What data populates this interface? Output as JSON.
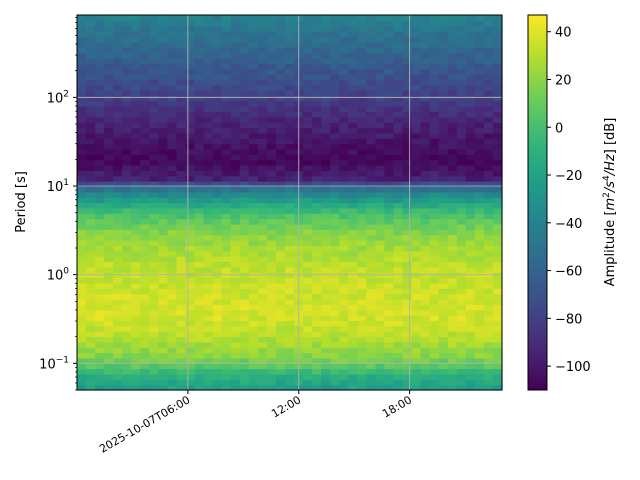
{
  "chart_data": {
    "type": "heatmap",
    "title": "",
    "xlabel": "",
    "ylabel": "Period [s]",
    "x_axis": {
      "type": "time",
      "start": "2025-10-07T00:00",
      "end": "2025-10-07T23:00",
      "ticks": [
        {
          "time": "2025-10-07T06:00",
          "label": "2025-10-07T06:00"
        },
        {
          "time": "2025-10-07T12:00",
          "label": "12:00"
        },
        {
          "time": "2025-10-07T18:00",
          "label": "18:00"
        }
      ]
    },
    "y_axis": {
      "scale": "log",
      "range": [
        0.05,
        850
      ],
      "major_ticks": [
        {
          "value": 0.1,
          "base": "10",
          "exp": "−1"
        },
        {
          "value": 1,
          "base": "10",
          "exp": "0"
        },
        {
          "value": 10,
          "base": "10",
          "exp": "1"
        },
        {
          "value": 100,
          "base": "10",
          "exp": "2"
        }
      ]
    },
    "grid": true,
    "colormap": "viridis",
    "colorbar": {
      "label_prefix": "Amplitude [",
      "label_unit_parts": [
        "m",
        "2",
        "/s",
        "4",
        "/Hz",
        "] [dB]"
      ],
      "range": [
        -110,
        47
      ],
      "ticks": [
        {
          "value": 40,
          "label": "40"
        },
        {
          "value": 20,
          "label": "20"
        },
        {
          "value": 0,
          "label": "0"
        },
        {
          "value": -20,
          "label": "−20"
        },
        {
          "value": -40,
          "label": "−40"
        },
        {
          "value": -60,
          "label": "−60"
        },
        {
          "value": -80,
          "label": "−80"
        },
        {
          "value": -100,
          "label": "−100"
        }
      ]
    },
    "time_columns_hours": [
      0,
      0.5,
      1,
      1.5,
      2,
      2.5,
      3,
      3.5,
      4,
      4.5,
      5,
      5.5,
      6,
      6.5,
      7,
      7.5,
      8,
      8.5,
      9,
      9.5,
      10,
      10.5,
      11,
      11.5,
      12,
      12.5,
      13,
      13.5,
      14,
      14.5,
      15,
      15.5,
      16,
      16.5,
      17,
      17.5,
      18,
      18.5,
      19,
      19.5,
      20,
      20.5,
      21,
      21.5,
      22,
      22.5,
      23
    ],
    "period_profile_db": [
      {
        "period": 0.05,
        "db": -25
      },
      {
        "period": 0.06,
        "db": -18
      },
      {
        "period": 0.075,
        "db": -10
      },
      {
        "period": 0.09,
        "db": 5
      },
      {
        "period": 0.12,
        "db": 18
      },
      {
        "period": 0.2,
        "db": 30
      },
      {
        "period": 0.35,
        "db": 38
      },
      {
        "period": 0.5,
        "db": 36
      },
      {
        "period": 0.8,
        "db": 34
      },
      {
        "period": 1.2,
        "db": 32
      },
      {
        "period": 2,
        "db": 26
      },
      {
        "period": 3,
        "db": 18
      },
      {
        "period": 5,
        "db": 0
      },
      {
        "period": 7,
        "db": -25
      },
      {
        "period": 9,
        "db": -45
      },
      {
        "period": 12,
        "db": -95
      },
      {
        "period": 20,
        "db": -108
      },
      {
        "period": 35,
        "db": -100
      },
      {
        "period": 60,
        "db": -92
      },
      {
        "period": 100,
        "db": -80
      },
      {
        "period": 200,
        "db": -68
      },
      {
        "period": 400,
        "db": -55
      },
      {
        "period": 600,
        "db": -48
      },
      {
        "period": 850,
        "db": -40
      }
    ]
  }
}
